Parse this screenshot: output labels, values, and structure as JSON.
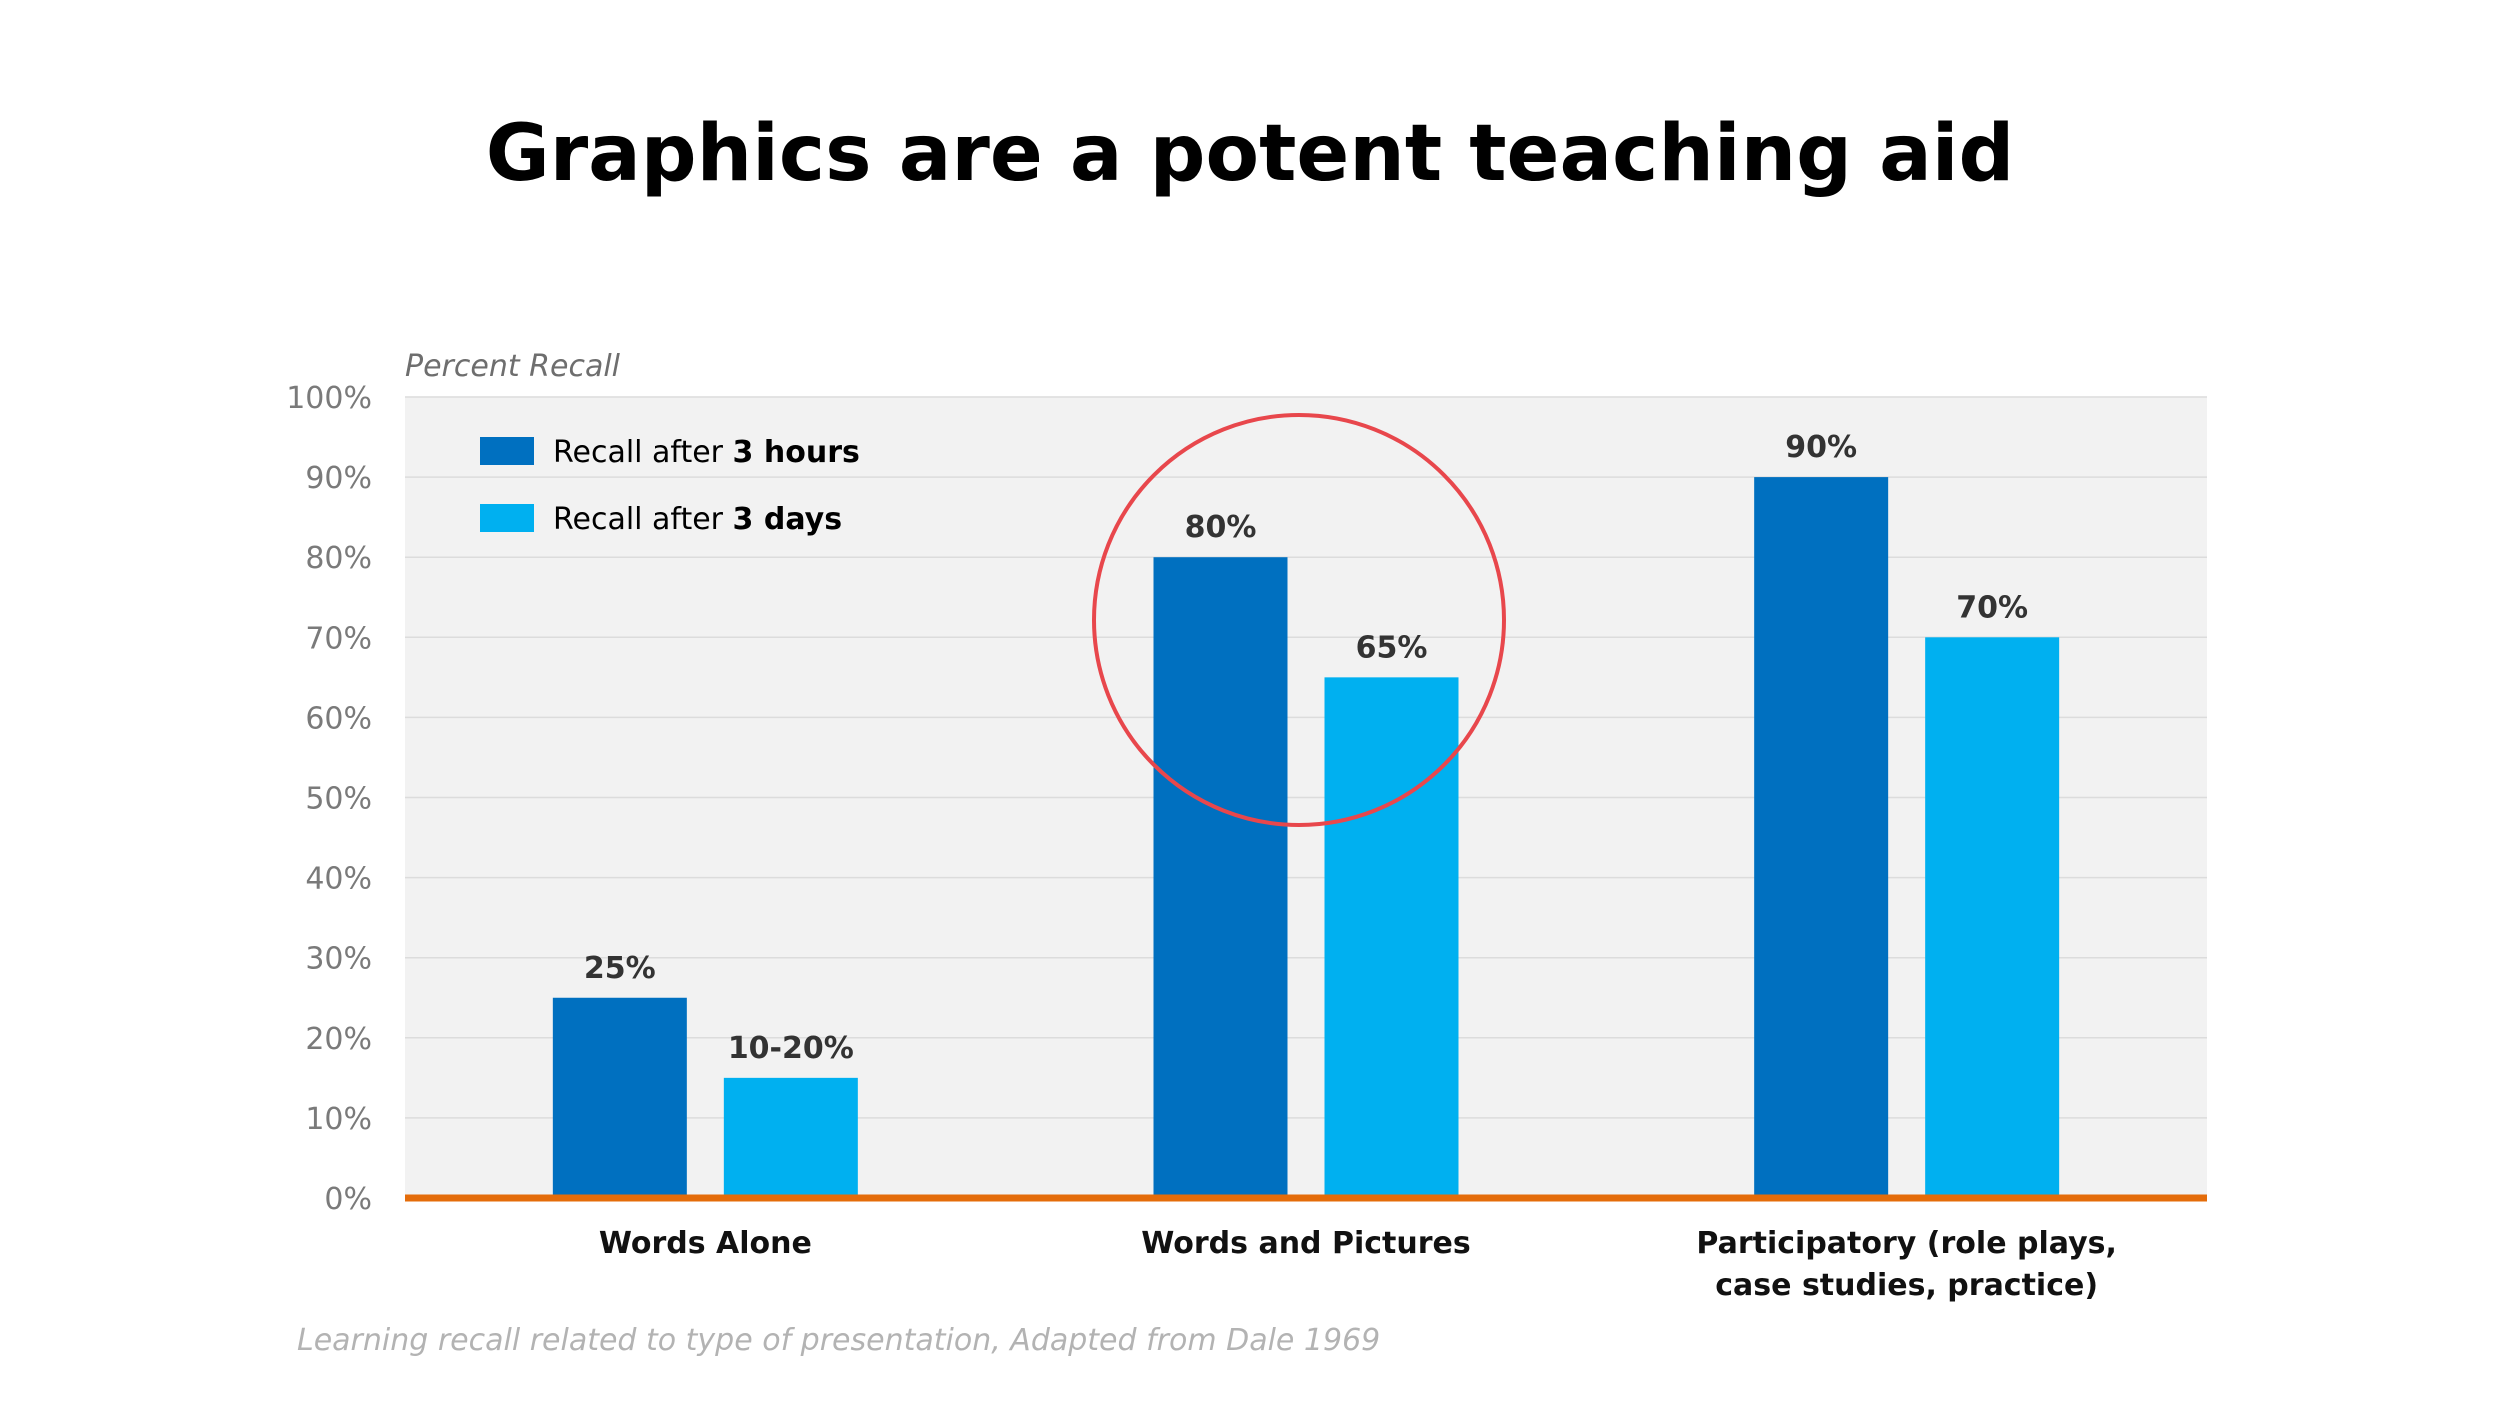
{
  "chart_data": {
    "type": "bar",
    "title": "Graphics are a potent teaching aid",
    "ylabel": "Percent Recall",
    "xlabel": "",
    "ylim": [
      0,
      100
    ],
    "yticks": [
      "0%",
      "10%",
      "20%",
      "30%",
      "40%",
      "50%",
      "60%",
      "70%",
      "80%",
      "90%",
      "100%"
    ],
    "grid": true,
    "legend_position": "top-left",
    "categories": [
      [
        "Words Alone"
      ],
      [
        "Words and Pictures"
      ],
      [
        "Participatory (role plays,",
        "case studies, practice)"
      ]
    ],
    "series": [
      {
        "name": "Recall after 3 hours",
        "legend_prefix": "Recall after ",
        "legend_bold": "3 hours",
        "color": "#0070c0",
        "values": [
          25,
          80,
          90
        ],
        "labels": [
          "25%",
          "80%",
          "90%"
        ]
      },
      {
        "name": "Recall after 3 days",
        "legend_prefix": "Recall after ",
        "legend_bold": "3 days",
        "color": "#00b0f0",
        "values": [
          15,
          65,
          70
        ],
        "labels": [
          "10-20%",
          "65%",
          "70%"
        ]
      }
    ],
    "highlight": {
      "category_index": 1,
      "shape": "circle",
      "color": "#e8474c"
    },
    "baseline_color": "#e46c0a",
    "plot_background": "#f2f2f2",
    "caption": "Learning recall related to type of presentation, Adapted from Dale 1969"
  }
}
